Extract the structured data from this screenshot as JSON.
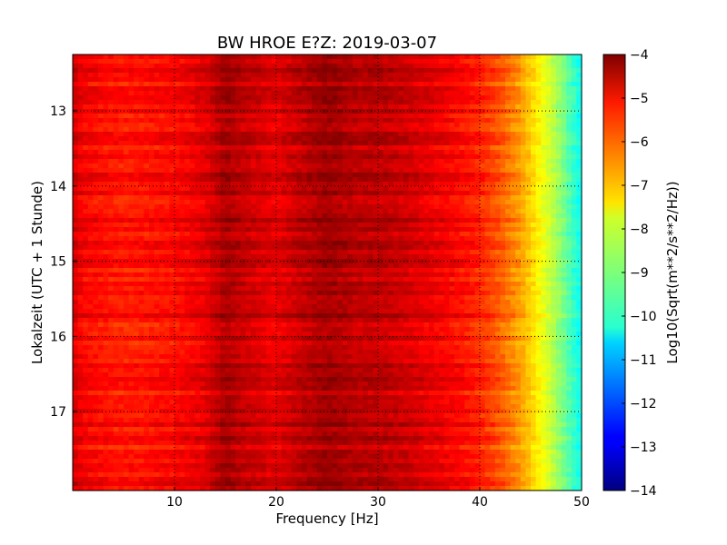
{
  "chart_data": {
    "type": "heatmap",
    "title": "BW HROE E?Z: 2019-03-07",
    "xlabel": "Frequency [Hz]",
    "ylabel": "Lokalzeit (UTC + 1 Stunde)",
    "xlim": [
      0,
      50
    ],
    "ylim": [
      12.25,
      18.05
    ],
    "y_inverted": true,
    "x_ticks": [
      10,
      20,
      30,
      40,
      50
    ],
    "x_tick_labels": [
      "10",
      "20",
      "30",
      "40",
      "50"
    ],
    "y_ticks": [
      13,
      14,
      15,
      16,
      17
    ],
    "y_tick_labels": [
      "13",
      "14",
      "15",
      "16",
      "17"
    ],
    "grid": true,
    "colorbar": {
      "label": "Log10(Sqrt(m**2/s**2/Hz))",
      "range": [
        -14,
        -4
      ],
      "colormap": "jet",
      "ticks": [
        -4,
        -5,
        -6,
        -7,
        -8,
        -9,
        -10,
        -11,
        -12,
        -13,
        -14
      ],
      "tick_labels": [
        "−4",
        "−5",
        "−6",
        "−7",
        "−8",
        "−9",
        "−10",
        "−11",
        "−12",
        "−13",
        "−14"
      ]
    },
    "frequency_profile": {
      "frequency_hz": [
        0,
        1,
        5,
        10,
        13,
        15,
        17,
        20,
        22,
        25,
        28,
        30,
        33,
        35,
        38,
        40,
        42,
        44,
        45,
        46,
        47,
        48,
        49,
        50
      ],
      "level": [
        -4.8,
        -5.2,
        -5.5,
        -5.3,
        -5.0,
        -4.4,
        -4.7,
        -5.0,
        -4.7,
        -4.3,
        -4.6,
        -4.6,
        -4.8,
        -5.0,
        -5.3,
        -5.6,
        -6.1,
        -6.8,
        -7.3,
        -7.8,
        -8.3,
        -8.9,
        -9.6,
        -10.2
      ]
    }
  }
}
